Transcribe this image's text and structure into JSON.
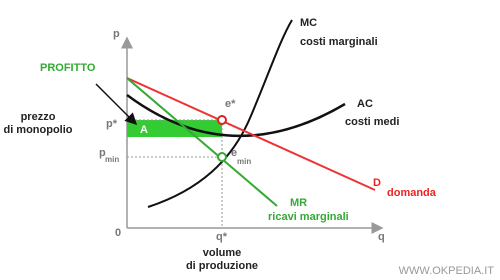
{
  "axes": {
    "y": "p",
    "x": "q",
    "origin": "0"
  },
  "curves": {
    "mc": {
      "name": "MC",
      "label": "costi marginali"
    },
    "ac": {
      "name": "AC",
      "label": "costi medi"
    },
    "d": {
      "name": "D",
      "label": "domanda"
    },
    "mr": {
      "name": "MR",
      "label": "ricavi marginali"
    }
  },
  "points": {
    "e_star": "e*",
    "e_min": {
      "base": "e",
      "sub": "min"
    }
  },
  "levels": {
    "p_star": "p*",
    "p_min": {
      "base": "p",
      "sub": "min"
    },
    "q_star": "q*"
  },
  "area": {
    "label": "A"
  },
  "annotations": {
    "profit": "PROFITTO",
    "price": [
      "prezzo",
      "di monopolio"
    ],
    "volume": [
      "volume",
      "di produzione"
    ]
  },
  "watermark": "WWW.OKPEDIA.IT"
}
